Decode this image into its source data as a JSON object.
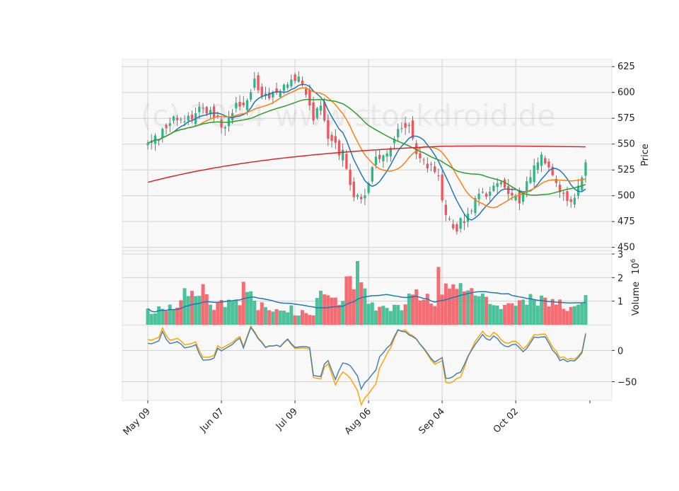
{
  "watermark": "(c) 2024 www.stockdroid.de",
  "colors": {
    "up": "#2eb88a",
    "down": "#f4535b",
    "ma_short": "#1f77b4",
    "ma_mid": "#ff7f0e",
    "ma_long": "#2ca02c",
    "ma_200": "#d62728",
    "volume_ma": "#1f77b4",
    "osc_a": "#4682b4",
    "osc_b": "#ffa500",
    "grid": "#d0d0d0",
    "panel_bg": "#f8f8f8"
  },
  "axes": {
    "price_label": "Price",
    "volume_label": "Volume",
    "volume_exponent": "10",
    "volume_exponent_power": "6",
    "price_ticks": [
      "450",
      "475",
      "500",
      "525",
      "550",
      "575",
      "600",
      "625"
    ],
    "volume_ticks": [
      "1",
      "2",
      "3"
    ],
    "osc_ticks": [
      "−50",
      "0"
    ],
    "x_ticks": [
      "May 09",
      "Jun 07",
      "Jul 09",
      "Aug 06",
      "Sep 04",
      "Oct 02"
    ]
  },
  "chart_data": {
    "type": "candlestick",
    "n_bars": 120,
    "x_tick_indices": [
      0,
      20,
      40,
      60,
      80,
      100
    ],
    "price_range": [
      447,
      632
    ],
    "volume_range": [
      0,
      3000000
    ],
    "osc_range": [
      -80,
      40
    ],
    "close_keypoints": [
      [
        0,
        550
      ],
      [
        3,
        555
      ],
      [
        6,
        575
      ],
      [
        9,
        570
      ],
      [
        12,
        578
      ],
      [
        15,
        585
      ],
      [
        18,
        578
      ],
      [
        20,
        568
      ],
      [
        22,
        575
      ],
      [
        24,
        590
      ],
      [
        26,
        585
      ],
      [
        29,
        612
      ],
      [
        31,
        600
      ],
      [
        34,
        598
      ],
      [
        37,
        605
      ],
      [
        40,
        615
      ],
      [
        42,
        612
      ],
      [
        45,
        575
      ],
      [
        47,
        590
      ],
      [
        49,
        555
      ],
      [
        53,
        540
      ],
      [
        56,
        500
      ],
      [
        59,
        500
      ],
      [
        62,
        535
      ],
      [
        65,
        545
      ],
      [
        68,
        560
      ],
      [
        71,
        572
      ],
      [
        73,
        545
      ],
      [
        76,
        530
      ],
      [
        79,
        520
      ],
      [
        81,
        480
      ],
      [
        84,
        470
      ],
      [
        87,
        480
      ],
      [
        90,
        500
      ],
      [
        93,
        500
      ],
      [
        96,
        518
      ],
      [
        98,
        505
      ],
      [
        101,
        495
      ],
      [
        104,
        520
      ],
      [
        107,
        540
      ],
      [
        110,
        520
      ],
      [
        113,
        500
      ],
      [
        116,
        495
      ],
      [
        119,
        530
      ]
    ],
    "volume_keypoints": [
      [
        0,
        0.55
      ],
      [
        8,
        0.8
      ],
      [
        12,
        1.6
      ],
      [
        15,
        1.3
      ],
      [
        18,
        0.8
      ],
      [
        25,
        0.9
      ],
      [
        29,
        1.5
      ],
      [
        32,
        0.6
      ],
      [
        38,
        0.5
      ],
      [
        45,
        0.5
      ],
      [
        46,
        1.25
      ],
      [
        52,
        1.1
      ],
      [
        55,
        1.7
      ],
      [
        57,
        2.0
      ],
      [
        60,
        0.9
      ],
      [
        65,
        0.6
      ],
      [
        70,
        0.8
      ],
      [
        73,
        1.3
      ],
      [
        78,
        1.0
      ],
      [
        79,
        1.4
      ],
      [
        82,
        1.9
      ],
      [
        84,
        1.6
      ],
      [
        88,
        1.25
      ],
      [
        93,
        1.0
      ],
      [
        97,
        0.8
      ],
      [
        103,
        0.9
      ],
      [
        108,
        1.05
      ],
      [
        112,
        0.9
      ],
      [
        116,
        0.65
      ],
      [
        119,
        1.1
      ]
    ],
    "volume_spikes": [
      [
        10,
        1.55
      ],
      [
        15,
        1.72
      ],
      [
        20,
        1.05
      ],
      [
        26,
        1.82
      ],
      [
        29,
        1.02
      ],
      [
        30,
        0.62
      ],
      [
        39,
        0.82
      ],
      [
        54,
        2.05
      ],
      [
        57,
        2.7
      ],
      [
        58,
        1.8
      ],
      [
        71,
        1.32
      ],
      [
        79,
        2.45
      ],
      [
        81,
        1.75
      ],
      [
        84,
        1.52
      ],
      [
        104,
        1.3
      ],
      [
        108,
        1.15
      ]
    ],
    "oscillator_keypoints": [
      [
        0,
        10
      ],
      [
        3,
        15
      ],
      [
        4,
        30
      ],
      [
        6,
        10
      ],
      [
        8,
        15
      ],
      [
        10,
        5
      ],
      [
        13,
        10
      ],
      [
        14,
        -5
      ],
      [
        15,
        -15
      ],
      [
        18,
        -12
      ],
      [
        19,
        5
      ],
      [
        20,
        0
      ],
      [
        23,
        10
      ],
      [
        25,
        20
      ],
      [
        26,
        5
      ],
      [
        28,
        35
      ],
      [
        30,
        20
      ],
      [
        32,
        5
      ],
      [
        36,
        8
      ],
      [
        38,
        20
      ],
      [
        40,
        5
      ],
      [
        44,
        5
      ],
      [
        45,
        -40
      ],
      [
        47,
        -42
      ],
      [
        48,
        -20
      ],
      [
        49,
        -15
      ],
      [
        51,
        -45
      ],
      [
        53,
        -20
      ],
      [
        55,
        -25
      ],
      [
        57,
        -40
      ],
      [
        58,
        -60
      ],
      [
        60,
        -45
      ],
      [
        62,
        -30
      ],
      [
        63,
        -10
      ],
      [
        66,
        10
      ],
      [
        68,
        35
      ],
      [
        70,
        30
      ],
      [
        73,
        18
      ],
      [
        76,
        -5
      ],
      [
        78,
        -20
      ],
      [
        80,
        -10
      ],
      [
        81,
        -45
      ],
      [
        83,
        -42
      ],
      [
        85,
        -35
      ],
      [
        87,
        -10
      ],
      [
        89,
        10
      ],
      [
        91,
        25
      ],
      [
        93,
        15
      ],
      [
        94,
        25
      ],
      [
        96,
        10
      ],
      [
        98,
        5
      ],
      [
        100,
        10
      ],
      [
        102,
        0
      ],
      [
        103,
        5
      ],
      [
        105,
        20
      ],
      [
        108,
        20
      ],
      [
        110,
        0
      ],
      [
        112,
        -15
      ],
      [
        116,
        -18
      ],
      [
        118,
        -5
      ],
      [
        119,
        25
      ]
    ],
    "oscillator_b_offset": [
      [
        0,
        6
      ],
      [
        20,
        4
      ],
      [
        45,
        -3
      ],
      [
        50,
        -6
      ],
      [
        55,
        -20
      ],
      [
        58,
        -25
      ],
      [
        62,
        -22
      ],
      [
        66,
        -5
      ],
      [
        70,
        3
      ],
      [
        80,
        -5
      ],
      [
        82,
        -8
      ],
      [
        85,
        -8
      ],
      [
        89,
        5
      ],
      [
        95,
        6
      ],
      [
        105,
        4
      ],
      [
        110,
        5
      ],
      [
        115,
        3
      ],
      [
        119,
        2
      ]
    ]
  }
}
